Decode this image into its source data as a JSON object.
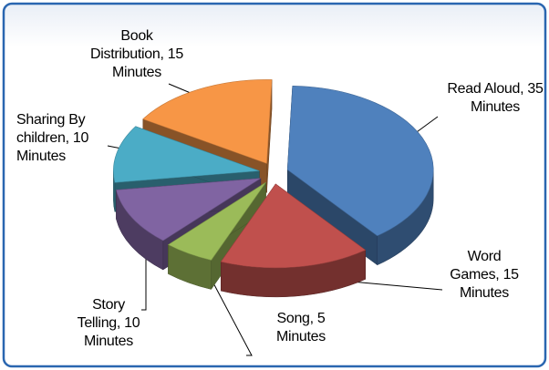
{
  "chart_data": {
    "type": "pie",
    "three_d": true,
    "exploded": true,
    "values": [
      35,
      15,
      5,
      10,
      10,
      15
    ],
    "value_labels": [
      "Read Aloud, 35 Minutes",
      "Word Games, 15 Minutes",
      "Song, 5 Minutes",
      "Story Telling, 10 Minutes",
      "Sharing By children, 10 Minutes",
      "Book Distribution, 15 Minutes"
    ],
    "colors": [
      "#4f81bd",
      "#c0504d",
      "#9bbb59",
      "#8064a2",
      "#4bacc6",
      "#f79646"
    ]
  }
}
